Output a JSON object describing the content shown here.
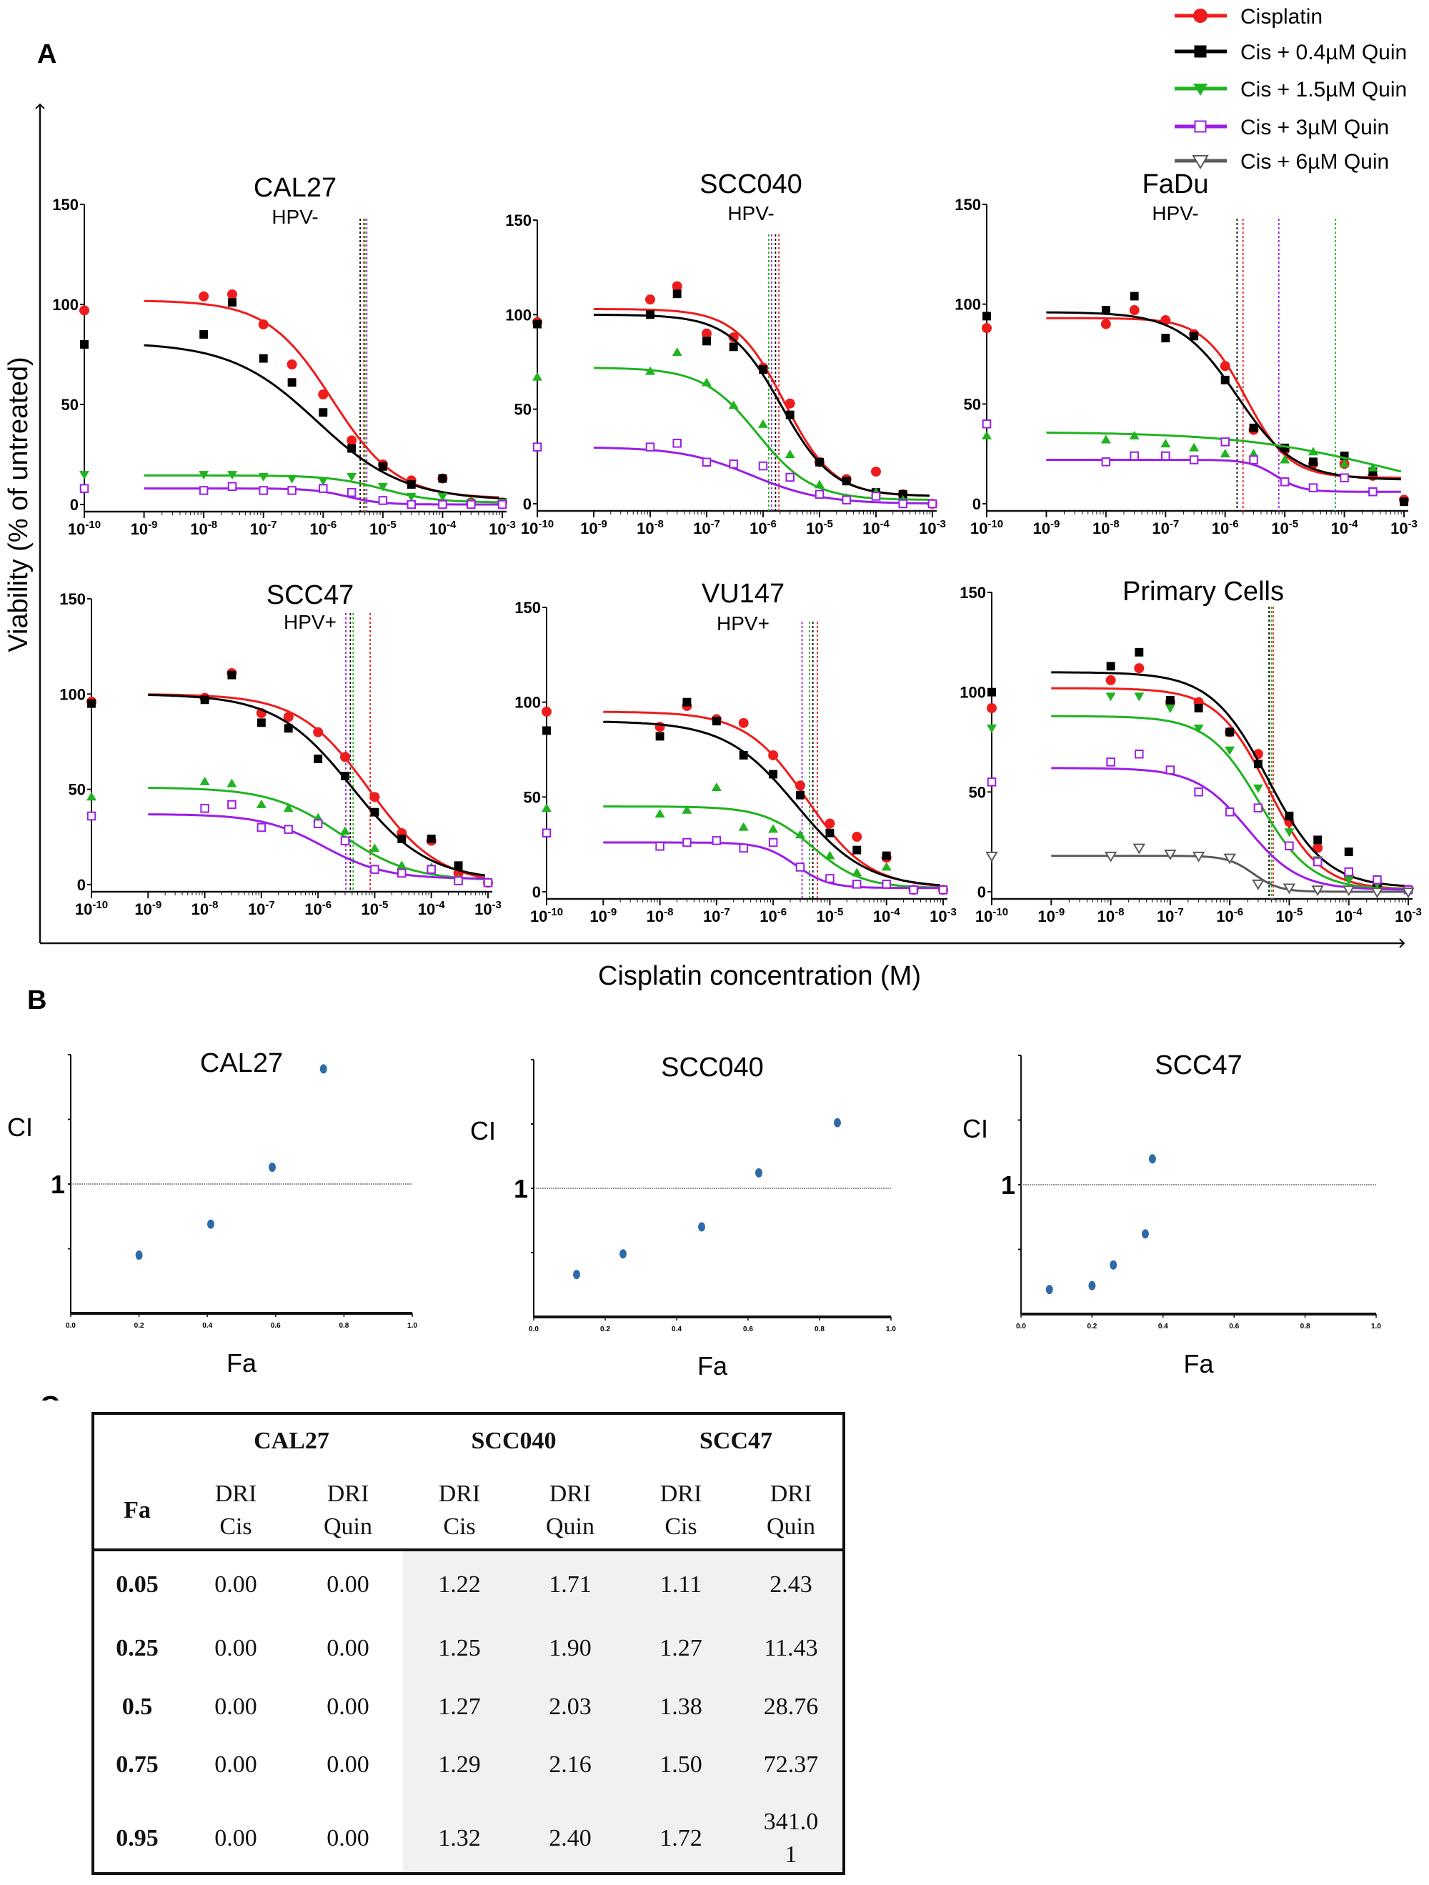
{
  "figure": {
    "panel_letters": [
      "A",
      "B",
      "C"
    ],
    "ylabel": "Viability (% of untreated)",
    "xlabel": "Cisplatin concentration (M)"
  },
  "legend": {
    "placement": "top-right",
    "items": [
      {
        "name": "Cisplatin",
        "color": "#ee1c1c",
        "marker": "circle"
      },
      {
        "name": "Cis + 0.4µM Quin",
        "color": "#000000",
        "marker": "square"
      },
      {
        "name": "Cis + 1.5µM Quin",
        "color": "#1fb31f",
        "marker": "triangle-down"
      },
      {
        "name": "Cis + 3µM Quin",
        "color": "#9a1ee6",
        "marker": "open-square"
      },
      {
        "name": "Cis + 6µM Quin",
        "color": "#5a5a5a",
        "marker": "open-triangle-down"
      }
    ]
  },
  "chart_data": [
    {
      "type": "line",
      "title": "CAL27",
      "subtitle": "HPV-",
      "xscale": "log",
      "xtick_exponents": [
        -10,
        -9,
        -8,
        -7,
        -6,
        -5,
        -4,
        -3
      ],
      "ylim": [
        0,
        150
      ],
      "yticks": [
        "0",
        "50",
        "100",
        "150"
      ],
      "control_dose": 1e-10,
      "doses": [
        1e-08,
        3e-08,
        1e-07,
        3e-07,
        1e-06,
        3e-06,
        1e-05,
        3e-05,
        0.0001,
        0.0003,
        0.001
      ],
      "series": [
        {
          "legend_index": 0,
          "control": 97,
          "values": [
            104,
            105,
            90,
            70,
            55,
            32,
            20,
            12,
            13,
            1,
            1
          ],
          "fit": {
            "top": 102,
            "bottom": 3,
            "logIC50": -5.85,
            "hill": 0.8
          },
          "ic50_line_log": -5.32
        },
        {
          "legend_index": 1,
          "control": 80,
          "values": [
            85,
            101,
            73,
            61,
            46,
            28,
            19,
            10,
            13,
            0,
            1
          ],
          "fit": {
            "top": 81,
            "bottom": 2,
            "logIC50": -6.1,
            "hill": 0.6
          },
          "ic50_line_log": -5.38
        },
        {
          "legend_index": 2,
          "marker": "triangle-down",
          "control": 15,
          "values": [
            15,
            15,
            14,
            13,
            12,
            14,
            9,
            4,
            4,
            1,
            1
          ],
          "fit": {
            "top": 14.5,
            "bottom": 1,
            "logIC50": -5.0,
            "hill": 1.0
          },
          "ic50_line_log": -5.3
        },
        {
          "legend_index": 3,
          "control": 8,
          "values": [
            7,
            9,
            7,
            7,
            8,
            6,
            2,
            0,
            0,
            0,
            0
          ],
          "fit": {
            "top": 8,
            "bottom": 0,
            "logIC50": -5.6,
            "hill": 1.5
          },
          "ic50_line_log": -5.27
        }
      ]
    },
    {
      "type": "line",
      "title": "SCC040",
      "subtitle": "HPV-",
      "xscale": "log",
      "xtick_exponents": [
        -10,
        -9,
        -8,
        -7,
        -6,
        -5,
        -4,
        -3
      ],
      "ylim": [
        0,
        150
      ],
      "yticks": [
        "0",
        "50",
        "100",
        "150"
      ],
      "control_dose": 1e-10,
      "doses": [
        1e-08,
        3e-08,
        1e-07,
        3e-07,
        1e-06,
        3e-06,
        1e-05,
        3e-05,
        0.0001,
        0.0003,
        0.001
      ],
      "series": [
        {
          "legend_index": 0,
          "control": 96,
          "values": [
            108,
            115,
            90,
            88,
            72,
            53,
            22,
            13,
            17,
            5,
            0
          ],
          "fit": {
            "top": 103,
            "bottom": 4,
            "logIC50": -5.62,
            "hill": 1.0
          },
          "ic50_line_log": -5.72
        },
        {
          "legend_index": 1,
          "control": 95,
          "values": [
            100,
            111,
            86,
            83,
            71,
            47,
            22,
            12,
            6,
            5,
            0
          ],
          "fit": {
            "top": 100,
            "bottom": 4,
            "logIC50": -5.68,
            "hill": 0.95
          },
          "ic50_line_log": -5.78
        },
        {
          "legend_index": 2,
          "marker": "triangle-up",
          "control": 67,
          "values": [
            70,
            80,
            64,
            52,
            42,
            26,
            10,
            3,
            6,
            2,
            0
          ],
          "fit": {
            "top": 72,
            "bottom": 2,
            "logIC50": -6.1,
            "hill": 0.9
          },
          "ic50_line_log": -5.9
        },
        {
          "legend_index": 3,
          "control": 30,
          "values": [
            30,
            32,
            22,
            21,
            20,
            14,
            5,
            2,
            4,
            0,
            0
          ],
          "fit": {
            "top": 30,
            "bottom": 0,
            "logIC50": -6.2,
            "hill": 0.7
          },
          "ic50_line_log": -5.85
        }
      ]
    },
    {
      "type": "line",
      "title": "FaDu",
      "subtitle": "HPV-",
      "xscale": "log",
      "xtick_exponents": [
        -10,
        -9,
        -8,
        -7,
        -6,
        -5,
        -4,
        -3
      ],
      "ylim": [
        0,
        150
      ],
      "yticks": [
        "0",
        "50",
        "100",
        "150"
      ],
      "control_dose": 1e-10,
      "doses": [
        1e-08,
        3e-08,
        1e-07,
        3e-07,
        1e-06,
        3e-06,
        1e-05,
        3e-05,
        0.0001,
        0.0003,
        0.001
      ],
      "series": [
        {
          "legend_index": 0,
          "control": 88,
          "values": [
            90,
            97,
            92,
            85,
            69,
            37,
            27,
            20,
            20,
            14,
            2
          ],
          "fit": {
            "top": 93,
            "bottom": 13,
            "logIC50": -5.65,
            "hill": 1.2
          },
          "ic50_line_log": -5.7
        },
        {
          "legend_index": 1,
          "control": 94,
          "values": [
            97,
            104,
            83,
            84,
            62,
            38,
            28,
            21,
            24,
            16,
            1
          ],
          "fit": {
            "top": 96,
            "bottom": 12,
            "logIC50": -5.8,
            "hill": 0.9
          },
          "ic50_line_log": -5.8
        },
        {
          "legend_index": 2,
          "marker": "triangle-up",
          "control": 34,
          "values": [
            32,
            34,
            30,
            28,
            25,
            25,
            22,
            26,
            20,
            18,
            null
          ],
          "fit": {
            "top": 36,
            "bottom": 0,
            "logIC50": -3.3,
            "hill": 0.35
          },
          "ic50_line_log": -4.15
        },
        {
          "legend_index": 3,
          "control": 40,
          "values": [
            21,
            24,
            24,
            22,
            31,
            22,
            11,
            8,
            13,
            6,
            null
          ],
          "fit": {
            "top": 22,
            "bottom": 6,
            "logIC50": -5.15,
            "hill": 2.0
          },
          "ic50_line_log": -5.1
        }
      ]
    },
    {
      "type": "line",
      "title": "SCC47",
      "subtitle": "HPV+",
      "xscale": "log",
      "xtick_exponents": [
        -10,
        -9,
        -8,
        -7,
        -6,
        -5,
        -4,
        -3
      ],
      "ylim": [
        0,
        150
      ],
      "yticks": [
        "0",
        "50",
        "100",
        "150"
      ],
      "control_dose": 1e-10,
      "doses": [
        1e-08,
        3e-08,
        1e-07,
        3e-07,
        1e-06,
        3e-06,
        1e-05,
        3e-05,
        0.0001,
        0.0003,
        0.001
      ],
      "series": [
        {
          "legend_index": 0,
          "control": 96,
          "values": [
            98,
            111,
            90,
            88,
            80,
            67,
            46,
            27,
            23,
            6,
            1
          ],
          "fit": {
            "top": 100,
            "bottom": 0,
            "logIC50": -5.1,
            "hill": 0.7
          },
          "ic50_line_log": -5.08
        },
        {
          "legend_index": 1,
          "control": 95,
          "values": [
            97,
            110,
            85,
            82,
            66,
            57,
            38,
            24,
            24,
            10,
            1
          ],
          "fit": {
            "top": 100,
            "bottom": 2,
            "logIC50": -5.4,
            "hill": 0.65
          },
          "ic50_line_log": -5.43
        },
        {
          "legend_index": 2,
          "marker": "triangle-up",
          "control": 46,
          "values": [
            54,
            53,
            42,
            40,
            35,
            28,
            19,
            10,
            9,
            3,
            1
          ],
          "fit": {
            "top": 51,
            "bottom": 2,
            "logIC50": -5.6,
            "hill": 0.7
          },
          "ic50_line_log": -5.38
        },
        {
          "legend_index": 3,
          "control": 36,
          "values": [
            40,
            42,
            30,
            29,
            32,
            23,
            8,
            6,
            8,
            2,
            1
          ],
          "fit": {
            "top": 37,
            "bottom": 3,
            "logIC50": -5.9,
            "hill": 0.8
          },
          "ic50_line_log": -5.51
        }
      ]
    },
    {
      "type": "line",
      "title": "VU147",
      "subtitle": "HPV+",
      "xscale": "log",
      "xtick_exponents": [
        -10,
        -9,
        -8,
        -7,
        -6,
        -5,
        -4,
        -3
      ],
      "ylim": [
        0,
        150
      ],
      "yticks": [
        "0",
        "50",
        "100",
        "150"
      ],
      "control_dose": 1e-10,
      "doses": [
        1e-08,
        3e-08,
        1e-07,
        3e-07,
        1e-06,
        3e-06,
        1e-05,
        3e-05,
        0.0001,
        0.0003,
        0.001
      ],
      "series": [
        {
          "legend_index": 0,
          "control": 95,
          "values": [
            87,
            98,
            91,
            89,
            72,
            56,
            36,
            29,
            18,
            1,
            1
          ],
          "fit": {
            "top": 95,
            "bottom": 2,
            "logIC50": -5.4,
            "hill": 0.8
          },
          "ic50_line_log": -5.22
        },
        {
          "legend_index": 1,
          "control": 85,
          "values": [
            82,
            100,
            90,
            72,
            62,
            51,
            31,
            22,
            19,
            1,
            1
          ],
          "fit": {
            "top": 90,
            "bottom": 2,
            "logIC50": -5.6,
            "hill": 0.7
          },
          "ic50_line_log": -5.3
        },
        {
          "legend_index": 2,
          "marker": "triangle-up",
          "control": 44,
          "values": [
            41,
            43,
            55,
            34,
            33,
            30,
            19,
            10,
            13,
            null,
            null
          ],
          "fit": {
            "top": 45,
            "bottom": 2,
            "logIC50": -5.3,
            "hill": 1.0
          },
          "ic50_line_log": -5.36
        },
        {
          "legend_index": 3,
          "control": 31,
          "values": [
            24,
            26,
            27,
            23,
            26,
            13,
            7,
            4,
            4,
            1,
            1
          ],
          "fit": {
            "top": 26,
            "bottom": 2,
            "logIC50": -5.6,
            "hill": 1.5
          },
          "ic50_line_log": -5.49
        }
      ]
    },
    {
      "type": "line",
      "title": "Primary Cells",
      "subtitle": "",
      "xscale": "log",
      "xtick_exponents": [
        -10,
        -9,
        -8,
        -7,
        -6,
        -5,
        -4,
        -3
      ],
      "ylim": [
        0,
        150
      ],
      "yticks": [
        "0",
        "50",
        "100",
        "150"
      ],
      "control_dose": 1e-10,
      "doses": [
        1e-08,
        3e-08,
        1e-07,
        3e-07,
        1e-06,
        3e-06,
        1e-05,
        3e-05,
        0.0001,
        0.0003,
        0.001
      ],
      "series": [
        {
          "legend_index": 0,
          "control": 92,
          "values": [
            106,
            112,
            95,
            95,
            80,
            69,
            35,
            22,
            8,
            3,
            1
          ],
          "fit": {
            "top": 102,
            "bottom": 1,
            "logIC50": -5.35,
            "hill": 1.0
          },
          "ic50_line_log": -5.27
        },
        {
          "legend_index": 1,
          "control": 100,
          "values": [
            113,
            120,
            96,
            92,
            80,
            64,
            38,
            26,
            20,
            4,
            1
          ],
          "fit": {
            "top": 110,
            "bottom": 2,
            "logIC50": -5.35,
            "hill": 0.9
          },
          "ic50_line_log": -5.34
        },
        {
          "legend_index": 2,
          "marker": "triangle-down",
          "control": 82,
          "values": [
            98,
            98,
            92,
            82,
            71,
            52,
            30,
            16,
            6,
            4,
            1
          ],
          "fit": {
            "top": 88,
            "bottom": 1,
            "logIC50": -5.5,
            "hill": 1.0
          },
          "ic50_line_log": -5.3
        },
        {
          "legend_index": 3,
          "control": 55,
          "values": [
            65,
            69,
            61,
            50,
            40,
            42,
            23,
            15,
            10,
            6,
            1
          ],
          "fit": {
            "top": 62,
            "bottom": 1,
            "logIC50": -5.7,
            "hill": 1.0
          },
          "ic50_line_log": null
        },
        {
          "legend_index": 4,
          "control": 18,
          "values": [
            18,
            22,
            19,
            18,
            17,
            4,
            2,
            1,
            1,
            0,
            0
          ],
          "fit": {
            "top": 18,
            "bottom": 0,
            "logIC50": -5.6,
            "hill": 2.0
          },
          "ic50_line_log": null
        }
      ]
    },
    {
      "type": "scatter",
      "title": "CAL27",
      "xlabel": "Fa",
      "ylabel": "CI",
      "xlim": [
        0,
        1
      ],
      "xticks": [
        "0.0",
        "0.2",
        "0.4",
        "0.6",
        "0.8",
        "1.0"
      ],
      "ylim": [
        0,
        2
      ],
      "ytick_label": "1",
      "reference_line_y": 1,
      "color": "#2f6aa8",
      "points": [
        [
          0.2,
          0.45
        ],
        [
          0.41,
          0.69
        ],
        [
          0.59,
          1.13
        ],
        [
          0.74,
          1.89
        ]
      ]
    },
    {
      "type": "scatter",
      "title": "SCC040",
      "xlabel": "Fa",
      "ylabel": "CI",
      "xlim": [
        0,
        1
      ],
      "xticks": [
        "0.0",
        "0.2",
        "0.4",
        "0.6",
        "0.8",
        "1.0"
      ],
      "ylim": [
        0,
        2
      ],
      "ytick_label": "1",
      "reference_line_y": 1,
      "color": "#2f6aa8",
      "points": [
        [
          0.12,
          0.33
        ],
        [
          0.25,
          0.49
        ],
        [
          0.47,
          0.7
        ],
        [
          0.63,
          1.12
        ],
        [
          0.85,
          1.51
        ]
      ]
    },
    {
      "type": "scatter",
      "title": "SCC47",
      "xlabel": "Fa",
      "ylabel": "CI",
      "xlim": [
        0,
        1
      ],
      "xticks": [
        "0.0",
        "0.2",
        "0.4",
        "0.6",
        "0.8",
        "1.0"
      ],
      "ylim": [
        0,
        2
      ],
      "ytick_label": "1",
      "reference_line_y": 1,
      "color": "#2f6aa8",
      "points": [
        [
          0.08,
          0.19
        ],
        [
          0.2,
          0.22
        ],
        [
          0.26,
          0.38
        ],
        [
          0.35,
          0.62
        ],
        [
          0.37,
          1.2
        ]
      ]
    }
  ],
  "table": {
    "groups": [
      "CAL27",
      "SCC040",
      "SCC47"
    ],
    "row_header": "Fa",
    "subheaders": [
      [
        "DRI",
        "Cis"
      ],
      [
        "DRI",
        "Quin"
      ],
      [
        "DRI",
        "Cis"
      ],
      [
        "DRI",
        "Quin"
      ],
      [
        "DRI",
        "Cis"
      ],
      [
        "DRI",
        "Quin"
      ]
    ],
    "rows": [
      {
        "fa": "0.05",
        "cells": [
          "0.00",
          "0.00",
          "1.22",
          "1.71",
          "1.11",
          "2.43"
        ]
      },
      {
        "fa": "0.25",
        "cells": [
          "0.00",
          "0.00",
          "1.25",
          "1.90",
          "1.27",
          "11.43"
        ]
      },
      {
        "fa": "0.5",
        "cells": [
          "0.00",
          "0.00",
          "1.27",
          "2.03",
          "1.38",
          "28.76"
        ]
      },
      {
        "fa": "0.75",
        "cells": [
          "0.00",
          "0.00",
          "1.29",
          "2.16",
          "1.50",
          "72.37"
        ]
      },
      {
        "fa": "0.95",
        "cells": [
          "0.00",
          "0.00",
          "1.32",
          "2.40",
          "1.72",
          "341.0\n1"
        ]
      }
    ]
  }
}
